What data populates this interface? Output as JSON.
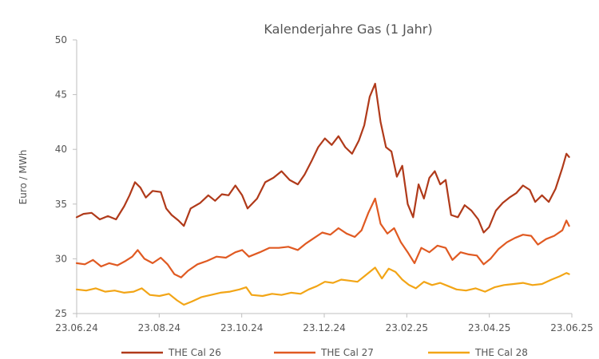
{
  "chart_data": {
    "type": "line",
    "title": "Kalenderjahre Gas (1 Jahr)",
    "xlabel": "",
    "ylabel": "Euro / MWh",
    "ylim": [
      25,
      50
    ],
    "yticks": [
      "25",
      "30",
      "35",
      "40",
      "45",
      "50"
    ],
    "xticks": [
      "23.06.24",
      "23.08.24",
      "23.10.24",
      "23.12.24",
      "23.02.25",
      "23.04.25",
      "23.06.25"
    ],
    "xrange": [
      "2024-06-23",
      "2025-06-23"
    ],
    "grid": false,
    "legend_position": "bottom",
    "series": [
      {
        "name": "THE Cal 26",
        "color": "#b03a1a",
        "points": [
          [
            "2024-06-23",
            33.8
          ],
          [
            "2024-06-28",
            34.1
          ],
          [
            "2024-07-04",
            34.2
          ],
          [
            "2024-07-10",
            33.6
          ],
          [
            "2024-07-16",
            33.9
          ],
          [
            "2024-07-22",
            33.6
          ],
          [
            "2024-07-28",
            34.8
          ],
          [
            "2024-08-01",
            35.8
          ],
          [
            "2024-08-05",
            37.0
          ],
          [
            "2024-08-09",
            36.5
          ],
          [
            "2024-08-13",
            35.6
          ],
          [
            "2024-08-18",
            36.2
          ],
          [
            "2024-08-24",
            36.1
          ],
          [
            "2024-08-28",
            34.6
          ],
          [
            "2024-09-01",
            34.0
          ],
          [
            "2024-09-06",
            33.5
          ],
          [
            "2024-09-10",
            33.0
          ],
          [
            "2024-09-15",
            34.6
          ],
          [
            "2024-09-22",
            35.1
          ],
          [
            "2024-09-28",
            35.8
          ],
          [
            "2024-10-03",
            35.3
          ],
          [
            "2024-10-08",
            35.9
          ],
          [
            "2024-10-13",
            35.8
          ],
          [
            "2024-10-18",
            36.7
          ],
          [
            "2024-10-23",
            35.8
          ],
          [
            "2024-10-27",
            34.6
          ],
          [
            "2024-11-03",
            35.5
          ],
          [
            "2024-11-09",
            37.0
          ],
          [
            "2024-11-15",
            37.4
          ],
          [
            "2024-11-21",
            38.0
          ],
          [
            "2024-11-27",
            37.2
          ],
          [
            "2024-12-03",
            36.8
          ],
          [
            "2024-12-08",
            37.7
          ],
          [
            "2024-12-13",
            38.9
          ],
          [
            "2024-12-18",
            40.2
          ],
          [
            "2024-12-23",
            41.0
          ],
          [
            "2024-12-28",
            40.4
          ],
          [
            "2025-01-02",
            41.2
          ],
          [
            "2025-01-07",
            40.2
          ],
          [
            "2025-01-12",
            39.6
          ],
          [
            "2025-01-17",
            40.8
          ],
          [
            "2025-01-21",
            42.2
          ],
          [
            "2025-01-25",
            44.8
          ],
          [
            "2025-01-29",
            46.0
          ],
          [
            "2025-02-02",
            42.5
          ],
          [
            "2025-02-06",
            40.2
          ],
          [
            "2025-02-10",
            39.8
          ],
          [
            "2025-02-14",
            37.5
          ],
          [
            "2025-02-18",
            38.5
          ],
          [
            "2025-02-22",
            35.0
          ],
          [
            "2025-02-26",
            33.8
          ],
          [
            "2025-03-02",
            36.8
          ],
          [
            "2025-03-06",
            35.5
          ],
          [
            "2025-03-10",
            37.4
          ],
          [
            "2025-03-14",
            38.0
          ],
          [
            "2025-03-18",
            36.8
          ],
          [
            "2025-03-22",
            37.2
          ],
          [
            "2025-03-26",
            34.0
          ],
          [
            "2025-03-31",
            33.8
          ],
          [
            "2025-04-05",
            34.9
          ],
          [
            "2025-04-10",
            34.4
          ],
          [
            "2025-04-15",
            33.6
          ],
          [
            "2025-04-19",
            32.4
          ],
          [
            "2025-04-23",
            32.9
          ],
          [
            "2025-04-28",
            34.4
          ],
          [
            "2025-05-03",
            35.1
          ],
          [
            "2025-05-08",
            35.6
          ],
          [
            "2025-05-13",
            36.0
          ],
          [
            "2025-05-18",
            36.7
          ],
          [
            "2025-05-23",
            36.3
          ],
          [
            "2025-05-27",
            35.2
          ],
          [
            "2025-06-01",
            35.8
          ],
          [
            "2025-06-06",
            35.2
          ],
          [
            "2025-06-11",
            36.4
          ],
          [
            "2025-06-16",
            38.3
          ],
          [
            "2025-06-19",
            39.6
          ],
          [
            "2025-06-21",
            39.3
          ]
        ]
      },
      {
        "name": "THE Cal 27",
        "color": "#e05a22",
        "points": [
          [
            "2024-06-23",
            29.6
          ],
          [
            "2024-06-29",
            29.5
          ],
          [
            "2024-07-05",
            29.9
          ],
          [
            "2024-07-11",
            29.3
          ],
          [
            "2024-07-17",
            29.6
          ],
          [
            "2024-07-23",
            29.4
          ],
          [
            "2024-07-29",
            29.8
          ],
          [
            "2024-08-03",
            30.2
          ],
          [
            "2024-08-07",
            30.8
          ],
          [
            "2024-08-12",
            30.0
          ],
          [
            "2024-08-18",
            29.6
          ],
          [
            "2024-08-24",
            30.1
          ],
          [
            "2024-08-29",
            29.5
          ],
          [
            "2024-09-03",
            28.6
          ],
          [
            "2024-09-08",
            28.3
          ],
          [
            "2024-09-13",
            28.9
          ],
          [
            "2024-09-20",
            29.5
          ],
          [
            "2024-09-27",
            29.8
          ],
          [
            "2024-10-04",
            30.2
          ],
          [
            "2024-10-11",
            30.1
          ],
          [
            "2024-10-18",
            30.6
          ],
          [
            "2024-10-23",
            30.8
          ],
          [
            "2024-10-28",
            30.2
          ],
          [
            "2024-11-05",
            30.6
          ],
          [
            "2024-11-12",
            31.0
          ],
          [
            "2024-11-19",
            31.0
          ],
          [
            "2024-11-26",
            31.1
          ],
          [
            "2024-12-03",
            30.8
          ],
          [
            "2024-12-09",
            31.4
          ],
          [
            "2024-12-15",
            31.9
          ],
          [
            "2024-12-21",
            32.4
          ],
          [
            "2024-12-27",
            32.2
          ],
          [
            "2025-01-02",
            32.8
          ],
          [
            "2025-01-08",
            32.3
          ],
          [
            "2025-01-14",
            32.0
          ],
          [
            "2025-01-19",
            32.6
          ],
          [
            "2025-01-24",
            34.2
          ],
          [
            "2025-01-29",
            35.5
          ],
          [
            "2025-02-02",
            33.2
          ],
          [
            "2025-02-07",
            32.3
          ],
          [
            "2025-02-12",
            32.8
          ],
          [
            "2025-02-17",
            31.5
          ],
          [
            "2025-02-22",
            30.6
          ],
          [
            "2025-02-27",
            29.6
          ],
          [
            "2025-03-04",
            31.0
          ],
          [
            "2025-03-10",
            30.6
          ],
          [
            "2025-03-16",
            31.2
          ],
          [
            "2025-03-22",
            31.0
          ],
          [
            "2025-03-27",
            29.9
          ],
          [
            "2025-04-02",
            30.6
          ],
          [
            "2025-04-08",
            30.4
          ],
          [
            "2025-04-14",
            30.3
          ],
          [
            "2025-04-19",
            29.5
          ],
          [
            "2025-04-24",
            30.0
          ],
          [
            "2025-04-30",
            30.9
          ],
          [
            "2025-05-06",
            31.5
          ],
          [
            "2025-05-12",
            31.9
          ],
          [
            "2025-05-18",
            32.2
          ],
          [
            "2025-05-24",
            32.1
          ],
          [
            "2025-05-29",
            31.3
          ],
          [
            "2025-06-04",
            31.8
          ],
          [
            "2025-06-10",
            32.1
          ],
          [
            "2025-06-16",
            32.6
          ],
          [
            "2025-06-19",
            33.5
          ],
          [
            "2025-06-21",
            33.0
          ]
        ]
      },
      {
        "name": "THE Cal 28",
        "color": "#f2a516",
        "points": [
          [
            "2024-06-23",
            27.2
          ],
          [
            "2024-06-30",
            27.1
          ],
          [
            "2024-07-07",
            27.3
          ],
          [
            "2024-07-14",
            27.0
          ],
          [
            "2024-07-21",
            27.1
          ],
          [
            "2024-07-28",
            26.9
          ],
          [
            "2024-08-04",
            27.0
          ],
          [
            "2024-08-10",
            27.3
          ],
          [
            "2024-08-16",
            26.7
          ],
          [
            "2024-08-23",
            26.6
          ],
          [
            "2024-08-30",
            26.8
          ],
          [
            "2024-09-05",
            26.2
          ],
          [
            "2024-09-10",
            25.8
          ],
          [
            "2024-09-16",
            26.1
          ],
          [
            "2024-09-23",
            26.5
          ],
          [
            "2024-09-30",
            26.7
          ],
          [
            "2024-10-07",
            26.9
          ],
          [
            "2024-10-14",
            27.0
          ],
          [
            "2024-10-21",
            27.2
          ],
          [
            "2024-10-26",
            27.4
          ],
          [
            "2024-10-30",
            26.7
          ],
          [
            "2024-11-07",
            26.6
          ],
          [
            "2024-11-14",
            26.8
          ],
          [
            "2024-11-21",
            26.7
          ],
          [
            "2024-11-28",
            26.9
          ],
          [
            "2024-12-05",
            26.8
          ],
          [
            "2024-12-11",
            27.2
          ],
          [
            "2024-12-17",
            27.5
          ],
          [
            "2024-12-23",
            27.9
          ],
          [
            "2024-12-29",
            27.8
          ],
          [
            "2025-01-04",
            28.1
          ],
          [
            "2025-01-10",
            28.0
          ],
          [
            "2025-01-16",
            27.9
          ],
          [
            "2025-01-22",
            28.5
          ],
          [
            "2025-01-29",
            29.2
          ],
          [
            "2025-02-03",
            28.2
          ],
          [
            "2025-02-08",
            29.1
          ],
          [
            "2025-02-13",
            28.8
          ],
          [
            "2025-02-18",
            28.1
          ],
          [
            "2025-02-23",
            27.6
          ],
          [
            "2025-02-28",
            27.3
          ],
          [
            "2025-03-06",
            27.9
          ],
          [
            "2025-03-12",
            27.6
          ],
          [
            "2025-03-18",
            27.8
          ],
          [
            "2025-03-24",
            27.5
          ],
          [
            "2025-03-30",
            27.2
          ],
          [
            "2025-04-06",
            27.1
          ],
          [
            "2025-04-13",
            27.3
          ],
          [
            "2025-04-20",
            27.0
          ],
          [
            "2025-04-27",
            27.4
          ],
          [
            "2025-05-04",
            27.6
          ],
          [
            "2025-05-11",
            27.7
          ],
          [
            "2025-05-18",
            27.8
          ],
          [
            "2025-05-25",
            27.6
          ],
          [
            "2025-06-01",
            27.7
          ],
          [
            "2025-06-08",
            28.1
          ],
          [
            "2025-06-14",
            28.4
          ],
          [
            "2025-06-19",
            28.7
          ],
          [
            "2025-06-21",
            28.6
          ]
        ]
      }
    ]
  }
}
